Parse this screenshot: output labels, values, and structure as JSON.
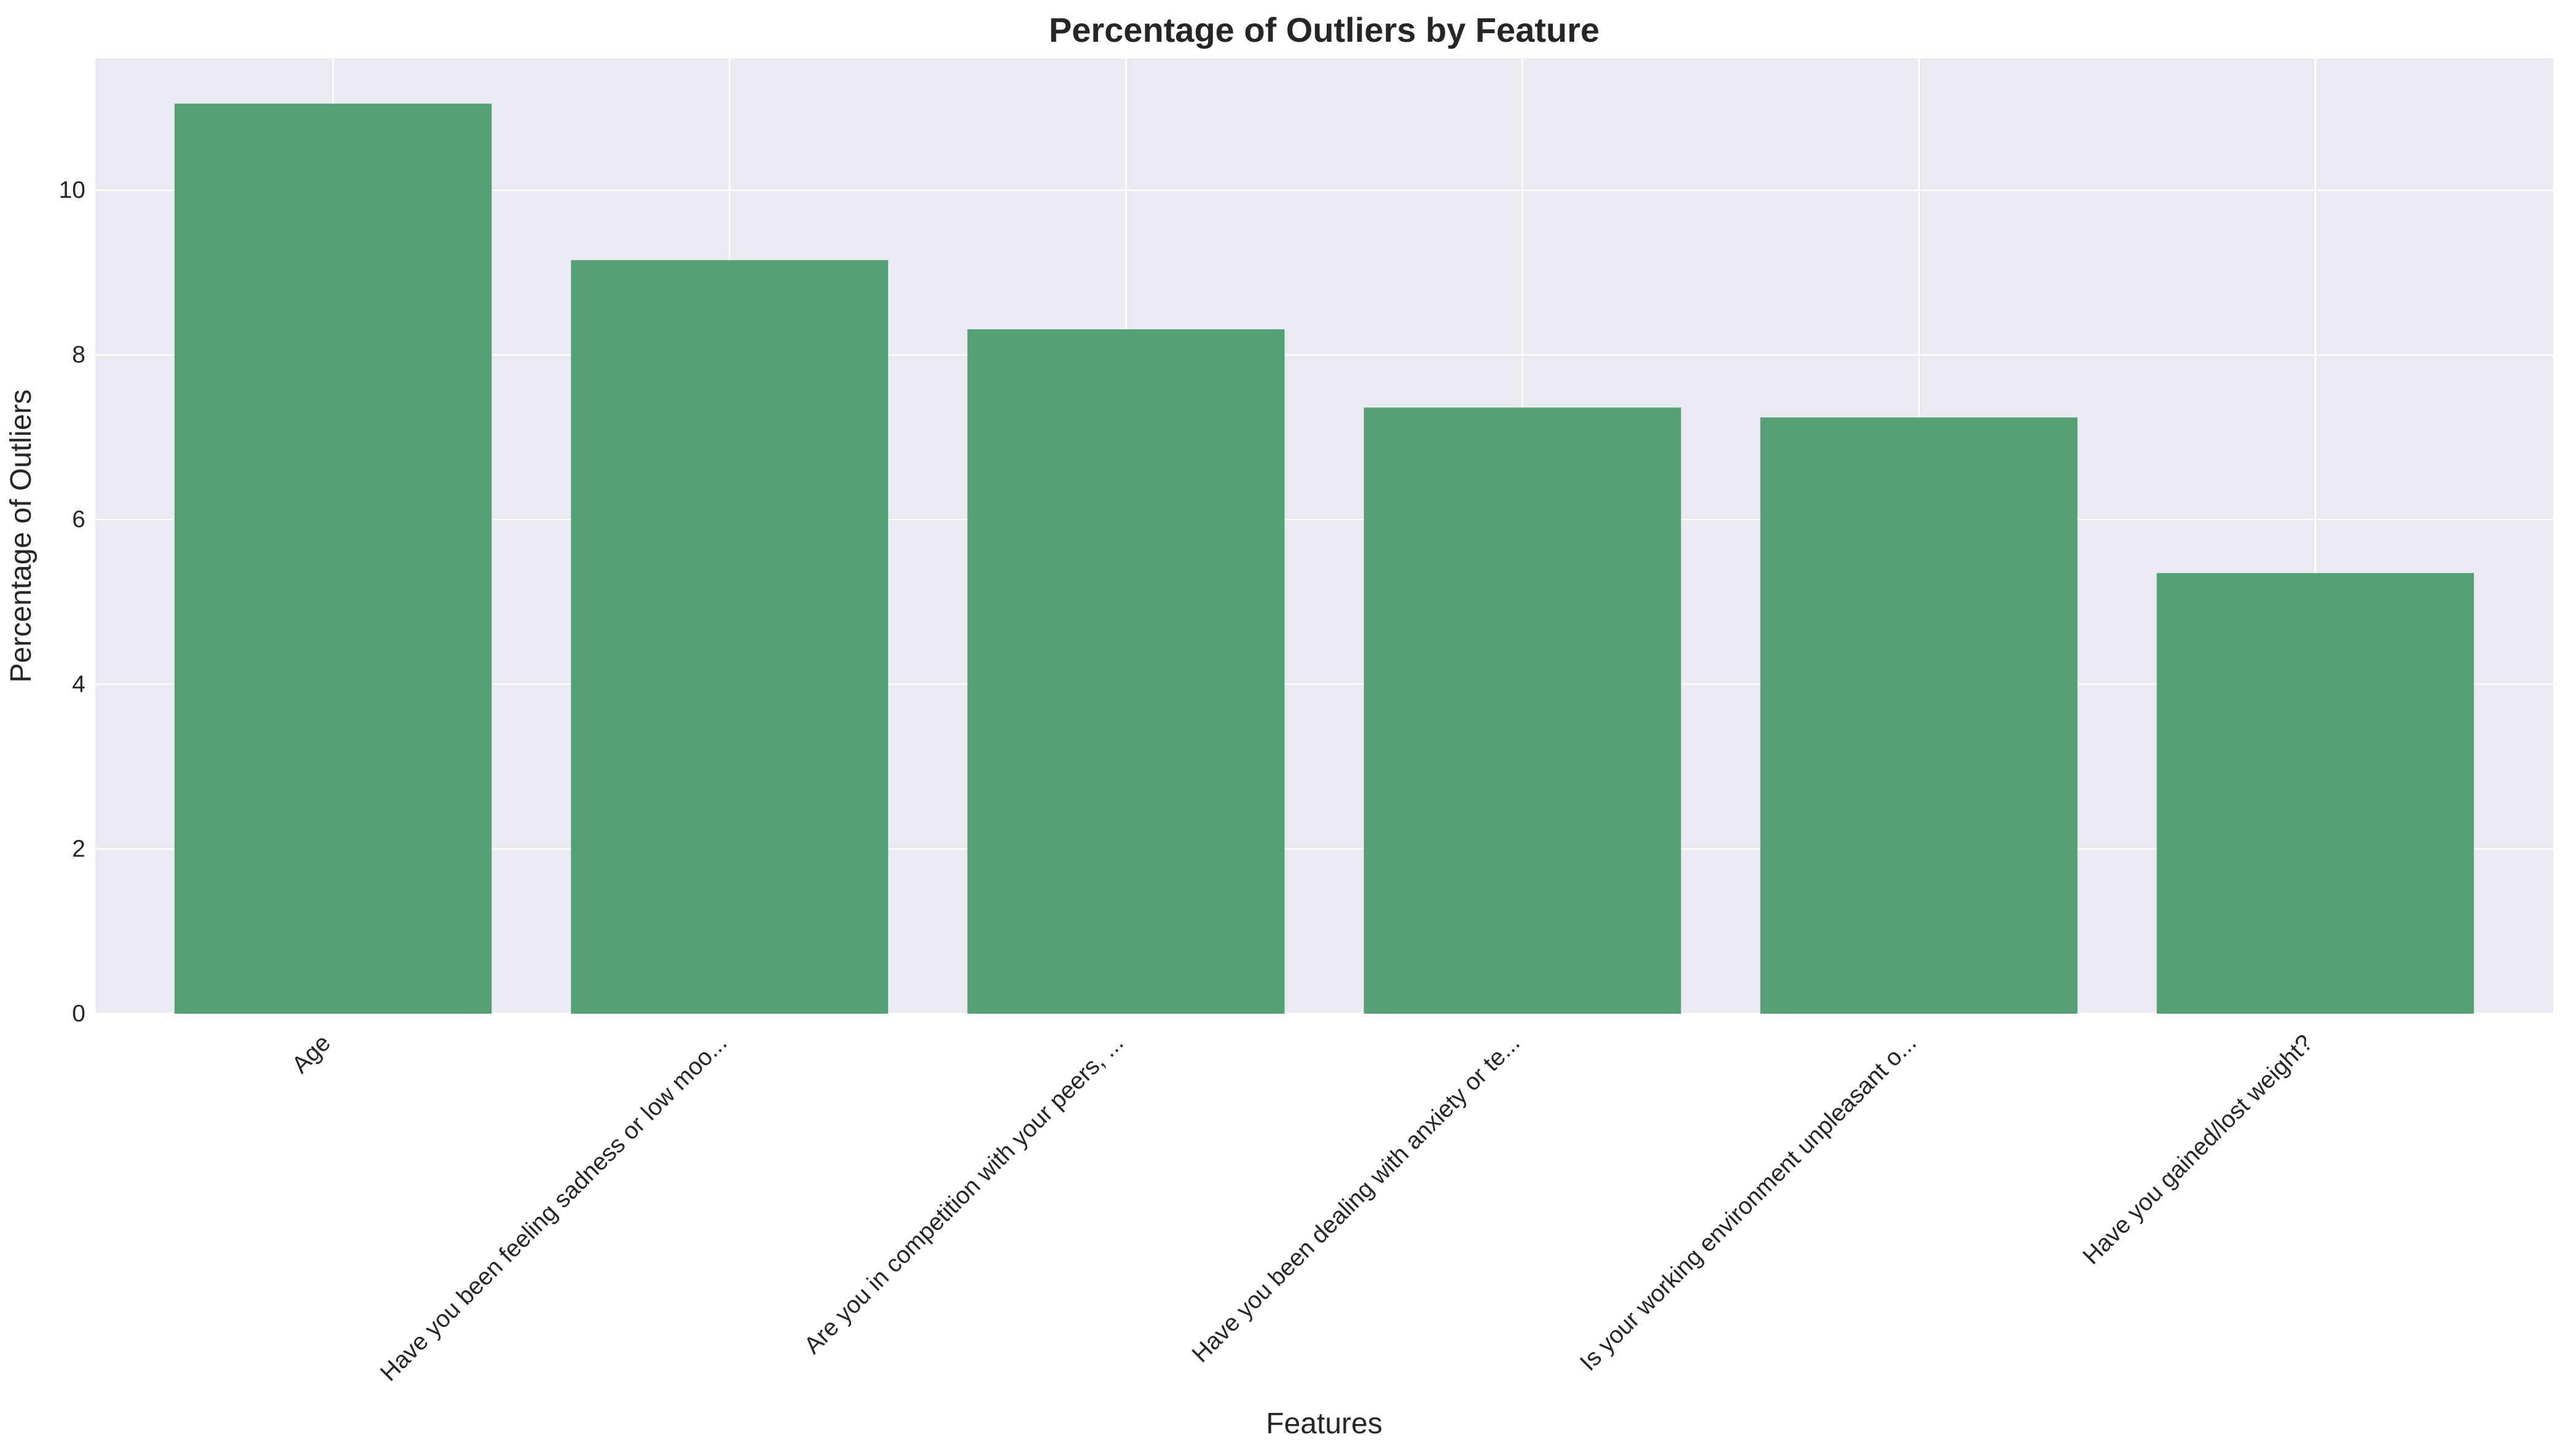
{
  "chart_data": {
    "type": "bar",
    "title": "Percentage of Outliers by Feature",
    "xlabel": "Features",
    "ylabel": "Percentage of Outliers",
    "categories": [
      "Age",
      "Have you been feeling sadness or low moo...",
      "Are you in competition with your peers, ...",
      "Have you been dealing with anxiety or te...",
      "Is your working environment unpleasant o...",
      "Have you gained/lost weight?"
    ],
    "values": [
      11.05,
      9.15,
      8.31,
      7.36,
      7.24,
      5.35
    ],
    "ylim": [
      0,
      11.6
    ],
    "yticks": [
      0,
      2,
      4,
      6,
      8,
      10
    ],
    "grid": true,
    "colors": {
      "bar": "#549f74",
      "plot_background": "#eaeaf2",
      "grid": "#ffffff",
      "figure_background": "#ffffff"
    }
  }
}
